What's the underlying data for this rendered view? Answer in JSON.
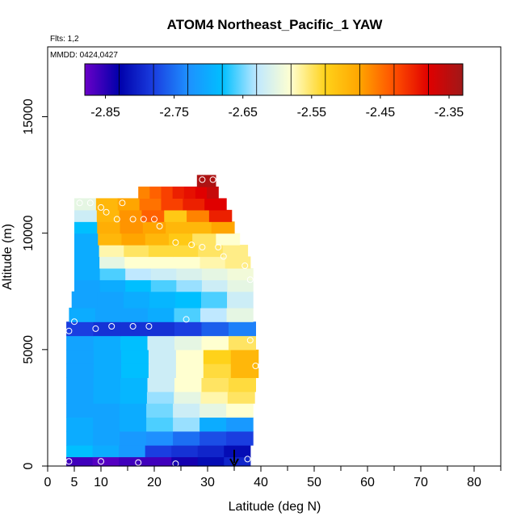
{
  "title": "ATOM4 Northeast_Pacific_1 YAW",
  "flights_label": "Flts: 1,2",
  "dates_label": "MMDD: 0424,0427",
  "colors": {
    "palette": [
      "#6a00c8",
      "#0000aa",
      "#1a3ee0",
      "#1e90ff",
      "#00bfff",
      "#bfe8ff",
      "#ffffd0",
      "#ffd21a",
      "#ffa500",
      "#ff5000",
      "#e00000",
      "#a01818"
    ]
  },
  "chart_data": {
    "type": "heatmap",
    "title": "ATOM4 Northeast_Pacific_1 YAW",
    "xlabel": "Latitude (deg N)",
    "ylabel": "Altitude (m)",
    "xlim": [
      0,
      85
    ],
    "ylim": [
      0,
      18000
    ],
    "xticks": [
      "0",
      "5",
      "10",
      "20",
      "30",
      "40",
      "50",
      "60",
      "70",
      "80"
    ],
    "xtick_values": [
      0,
      5,
      10,
      20,
      30,
      40,
      50,
      60,
      70,
      80
    ],
    "yticks": [
      "0",
      "5000",
      "10000",
      "15000"
    ],
    "ytick_values": [
      0,
      5000,
      10000,
      15000
    ],
    "colorbar": {
      "min": -2.88,
      "max": -2.33,
      "ticks": [
        "-2.85",
        "-2.75",
        "-2.65",
        "-2.55",
        "-2.45",
        "-2.35"
      ],
      "tick_values": [
        -2.85,
        -2.75,
        -2.65,
        -2.55,
        -2.45,
        -2.35
      ]
    },
    "grid": false,
    "bands": [
      {
        "ylo": 0,
        "yhi": 400,
        "xlo": 3.5,
        "xhi": 38,
        "values": [
          -2.86,
          -2.87,
          -2.86,
          -2.86,
          -2.84,
          -2.82,
          -2.8
        ]
      },
      {
        "ylo": 400,
        "yhi": 900,
        "xlo": 3.5,
        "xhi": 38,
        "values": [
          -2.68,
          -2.7,
          -2.72,
          -2.78,
          -2.79,
          -2.8,
          -2.82
        ]
      },
      {
        "ylo": 900,
        "yhi": 1500,
        "xlo": 3.5,
        "xhi": 38.5,
        "values": [
          -2.7,
          -2.71,
          -2.72,
          -2.73,
          -2.75,
          -2.77,
          -2.78
        ]
      },
      {
        "ylo": 1500,
        "yhi": 2100,
        "xlo": 3.5,
        "xhi": 38.5,
        "values": [
          -2.7,
          -2.71,
          -2.7,
          -2.66,
          -2.64,
          -2.7,
          -2.72
        ]
      },
      {
        "ylo": 2100,
        "yhi": 2700,
        "xlo": 3.5,
        "xhi": 38.5,
        "values": [
          -2.71,
          -2.71,
          -2.7,
          -2.65,
          -2.62,
          -2.6,
          -2.58
        ]
      },
      {
        "ylo": 2700,
        "yhi": 3200,
        "xlo": 3.5,
        "xhi": 38.8,
        "values": [
          -2.71,
          -2.7,
          -2.69,
          -2.64,
          -2.6,
          -2.57,
          -2.55
        ]
      },
      {
        "ylo": 3200,
        "yhi": 3800,
        "xlo": 3.5,
        "xhi": 39,
        "values": [
          -2.71,
          -2.7,
          -2.69,
          -2.62,
          -2.58,
          -2.55,
          -2.54
        ]
      },
      {
        "ylo": 3800,
        "yhi": 4400,
        "xlo": 3.5,
        "xhi": 39.5,
        "values": [
          -2.71,
          -2.7,
          -2.68,
          -2.62,
          -2.58,
          -2.54,
          -2.5
        ]
      },
      {
        "ylo": 4400,
        "yhi": 5000,
        "xlo": 3.5,
        "xhi": 39.5,
        "values": [
          -2.71,
          -2.7,
          -2.68,
          -2.62,
          -2.58,
          -2.53,
          -2.5
        ]
      },
      {
        "ylo": 5000,
        "yhi": 5600,
        "xlo": 3.5,
        "xhi": 39,
        "values": [
          -2.71,
          -2.7,
          -2.68,
          -2.62,
          -2.6,
          -2.58,
          -2.55
        ]
      },
      {
        "ylo": 5600,
        "yhi": 6200,
        "xlo": 3.5,
        "xhi": 39,
        "values": [
          -2.78,
          -2.79,
          -2.79,
          -2.79,
          -2.78,
          -2.76,
          -2.74
        ]
      },
      {
        "ylo": 6200,
        "yhi": 6800,
        "xlo": 4,
        "xhi": 38.5,
        "values": [
          -2.7,
          -2.71,
          -2.71,
          -2.7,
          -2.66,
          -2.63,
          -2.6
        ]
      },
      {
        "ylo": 6800,
        "yhi": 7500,
        "xlo": 4.5,
        "xhi": 38.5,
        "values": [
          -2.71,
          -2.71,
          -2.7,
          -2.69,
          -2.68,
          -2.66,
          -2.62
        ]
      },
      {
        "ylo": 7500,
        "yhi": 8000,
        "xlo": 5,
        "xhi": 38.5,
        "values": [
          -2.71,
          -2.7,
          -2.68,
          -2.66,
          -2.64,
          -2.62,
          -2.6
        ]
      },
      {
        "ylo": 8000,
        "yhi": 8500,
        "xlo": 5,
        "xhi": 38.5,
        "values": [
          -2.7,
          -2.66,
          -2.63,
          -2.62,
          -2.61,
          -2.6,
          -2.59
        ]
      },
      {
        "ylo": 8500,
        "yhi": 9000,
        "xlo": 5,
        "xhi": 38,
        "values": [
          -2.7,
          -2.6,
          -2.58,
          -2.58,
          -2.58,
          -2.57,
          -2.56
        ]
      },
      {
        "ylo": 9000,
        "yhi": 9500,
        "xlo": 5,
        "xhi": 37.5,
        "values": [
          -2.7,
          -2.57,
          -2.55,
          -2.54,
          -2.54,
          -2.55,
          -2.56
        ]
      },
      {
        "ylo": 9500,
        "yhi": 10000,
        "xlo": 5,
        "xhi": 36,
        "values": [
          -2.7,
          -2.5,
          -2.48,
          -2.5,
          -2.52,
          -2.55,
          -2.58
        ]
      },
      {
        "ylo": 10000,
        "yhi": 10500,
        "xlo": 5,
        "xhi": 35,
        "values": [
          -2.68,
          -2.49,
          -2.47,
          -2.48,
          -2.5,
          -2.5,
          -2.48
        ]
      },
      {
        "ylo": 10500,
        "yhi": 11000,
        "xlo": 5,
        "xhi": 34.5,
        "values": [
          -2.62,
          -2.5,
          -2.47,
          -2.44,
          -2.52,
          -2.46,
          -2.4
        ]
      },
      {
        "ylo": 11000,
        "yhi": 11500,
        "xlo": 5,
        "xhi": 33.5,
        "values": [
          -2.6,
          -2.5,
          -2.48,
          -2.45,
          -2.42,
          -2.4,
          -2.38
        ]
      },
      {
        "ylo": 11500,
        "yhi": 12000,
        "xlo": 17,
        "xhi": 32,
        "values": [
          -2.46,
          -2.44,
          -2.42,
          -2.4,
          -2.39,
          -2.38,
          -2.36
        ]
      },
      {
        "ylo": 12000,
        "yhi": 12500,
        "xlo": 28,
        "xhi": 31.5,
        "values": [
          -2.34,
          -2.34,
          -2.34,
          -2.34,
          -2.34,
          -2.34,
          -2.34
        ]
      }
    ],
    "points": [
      {
        "x": 4,
        "y": 200
      },
      {
        "x": 10,
        "y": 200
      },
      {
        "x": 17,
        "y": 150
      },
      {
        "x": 24,
        "y": 100
      },
      {
        "x": 37.5,
        "y": 300
      },
      {
        "x": 4,
        "y": 5800
      },
      {
        "x": 5,
        "y": 6200
      },
      {
        "x": 9,
        "y": 5900
      },
      {
        "x": 12,
        "y": 6000
      },
      {
        "x": 16,
        "y": 6000
      },
      {
        "x": 19,
        "y": 6000
      },
      {
        "x": 26,
        "y": 6300
      },
      {
        "x": 38,
        "y": 5400
      },
      {
        "x": 39,
        "y": 4300
      },
      {
        "x": 40,
        "y": 4300
      },
      {
        "x": 38,
        "y": 8000
      },
      {
        "x": 37,
        "y": 8600
      },
      {
        "x": 33,
        "y": 9000
      },
      {
        "x": 32,
        "y": 9400
      },
      {
        "x": 29,
        "y": 9400
      },
      {
        "x": 27,
        "y": 9500
      },
      {
        "x": 24,
        "y": 9600
      },
      {
        "x": 21,
        "y": 10300
      },
      {
        "x": 20,
        "y": 10600
      },
      {
        "x": 18,
        "y": 10600
      },
      {
        "x": 16,
        "y": 10600
      },
      {
        "x": 13,
        "y": 10600
      },
      {
        "x": 11,
        "y": 10900
      },
      {
        "x": 10,
        "y": 11100
      },
      {
        "x": 8,
        "y": 11300
      },
      {
        "x": 6,
        "y": 11300
      },
      {
        "x": 14,
        "y": 11300
      },
      {
        "x": 29,
        "y": 12300
      },
      {
        "x": 31,
        "y": 12300
      }
    ],
    "arrow": {
      "x": 35,
      "y_from": 700,
      "y_to": 0
    }
  }
}
